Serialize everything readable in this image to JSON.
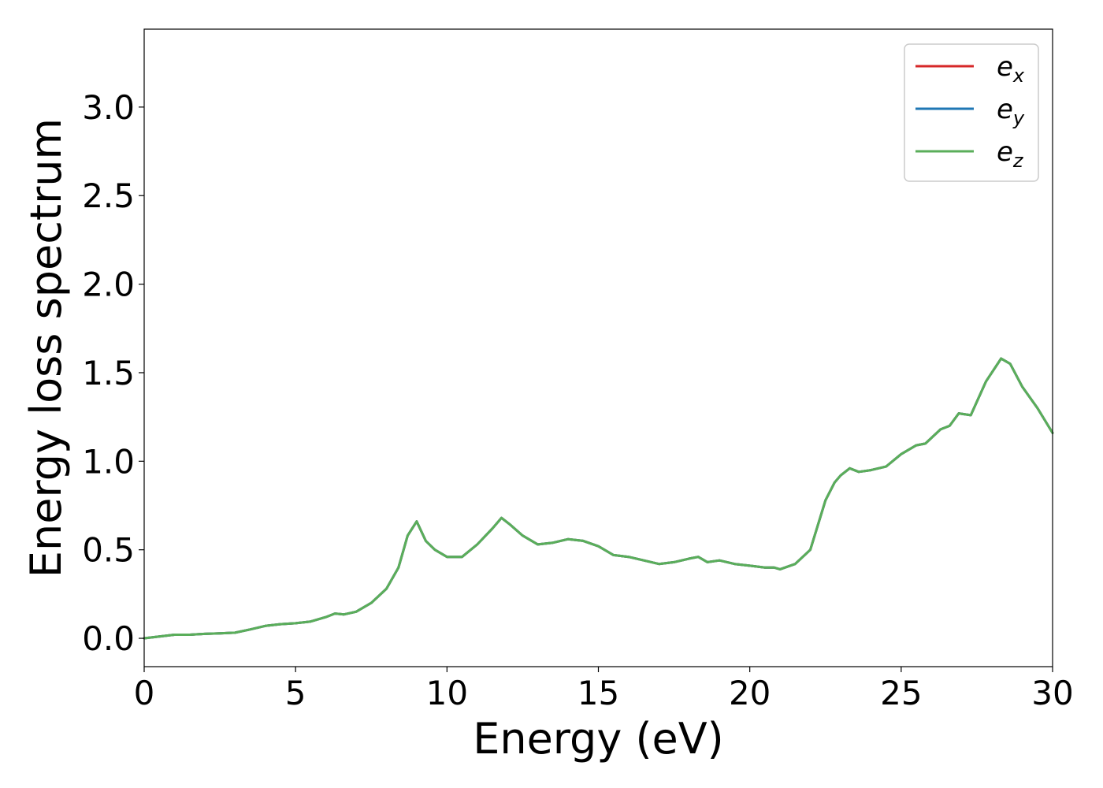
{
  "chart_data": {
    "type": "line",
    "title": "",
    "xlabel": "Energy (eV)",
    "ylabel": "Energy loss spectrum",
    "xlim": [
      0,
      30
    ],
    "ylim": [
      -0.16,
      3.44
    ],
    "xticks": [
      0,
      5,
      10,
      15,
      20,
      25,
      30
    ],
    "yticks": [
      0.0,
      0.5,
      1.0,
      1.5,
      2.0,
      2.5,
      3.0
    ],
    "xtick_labels": [
      "0",
      "5",
      "10",
      "15",
      "20",
      "25",
      "30"
    ],
    "ytick_labels": [
      "0.0",
      "0.5",
      "1.0",
      "1.5",
      "2.0",
      "2.5",
      "3.0"
    ],
    "grid": false,
    "legend_position": "top-right",
    "series": [
      {
        "name": "e",
        "subscript": "x",
        "color": "#d62728",
        "x": [
          0,
          0.5,
          1,
          1.5,
          2,
          2.5,
          3,
          3.5,
          4,
          4.5,
          5,
          5.5,
          6,
          6.3,
          6.6,
          7,
          7.5,
          8,
          8.4,
          8.7,
          9,
          9.3,
          9.6,
          10,
          10.5,
          11,
          11.5,
          11.8,
          12.1,
          12.5,
          13,
          13.5,
          14,
          14.5,
          15,
          15.5,
          16,
          16.5,
          17,
          17.5,
          18,
          18.3,
          18.6,
          19,
          19.5,
          20,
          20.5,
          20.8,
          21,
          21.5,
          22,
          22.5,
          22.8,
          23,
          23.3,
          23.6,
          24,
          24.5,
          25,
          25.5,
          25.8,
          26.3,
          26.6,
          26.9,
          27.3,
          27.8,
          28.3,
          28.6,
          29,
          29.5,
          30
        ],
        "y": [
          0.0,
          0.01,
          0.02,
          0.02,
          0.025,
          0.028,
          0.032,
          0.05,
          0.07,
          0.08,
          0.085,
          0.095,
          0.12,
          0.14,
          0.135,
          0.15,
          0.2,
          0.28,
          0.4,
          0.58,
          0.66,
          0.55,
          0.5,
          0.46,
          0.46,
          0.53,
          0.62,
          0.68,
          0.64,
          0.58,
          0.53,
          0.54,
          0.56,
          0.55,
          0.52,
          0.47,
          0.46,
          0.44,
          0.42,
          0.43,
          0.45,
          0.46,
          0.43,
          0.44,
          0.42,
          0.41,
          0.4,
          0.4,
          0.39,
          0.42,
          0.5,
          0.78,
          0.88,
          0.92,
          0.96,
          0.94,
          0.95,
          0.97,
          1.04,
          1.09,
          1.1,
          1.18,
          1.2,
          1.27,
          1.26,
          1.45,
          1.58,
          1.55,
          1.42,
          1.3,
          1.16
        ]
      },
      {
        "name": "e",
        "subscript": "y",
        "color": "#1f77b4",
        "x": [
          0,
          0.5,
          1,
          1.5,
          2,
          2.5,
          3,
          3.5,
          4,
          4.5,
          5,
          5.5,
          6,
          6.3,
          6.6,
          7,
          7.5,
          8,
          8.4,
          8.7,
          9,
          9.3,
          9.6,
          10,
          10.5,
          11,
          11.5,
          11.8,
          12.1,
          12.5,
          13,
          13.5,
          14,
          14.5,
          15,
          15.5,
          16,
          16.5,
          17,
          17.5,
          18,
          18.3,
          18.6,
          19,
          19.5,
          20,
          20.5,
          20.8,
          21,
          21.5,
          22,
          22.5,
          22.8,
          23,
          23.3,
          23.6,
          24,
          24.5,
          25,
          25.5,
          25.8,
          26.3,
          26.6,
          26.9,
          27.3,
          27.8,
          28.3,
          28.6,
          29,
          29.5,
          30
        ],
        "y": [
          0.0,
          0.01,
          0.02,
          0.02,
          0.025,
          0.028,
          0.032,
          0.05,
          0.07,
          0.08,
          0.085,
          0.095,
          0.12,
          0.14,
          0.135,
          0.15,
          0.2,
          0.28,
          0.4,
          0.58,
          0.66,
          0.55,
          0.5,
          0.46,
          0.46,
          0.53,
          0.62,
          0.68,
          0.64,
          0.58,
          0.53,
          0.54,
          0.56,
          0.55,
          0.52,
          0.47,
          0.46,
          0.44,
          0.42,
          0.43,
          0.45,
          0.46,
          0.43,
          0.44,
          0.42,
          0.41,
          0.4,
          0.4,
          0.39,
          0.42,
          0.5,
          0.78,
          0.88,
          0.92,
          0.96,
          0.94,
          0.95,
          0.97,
          1.04,
          1.09,
          1.1,
          1.18,
          1.2,
          1.27,
          1.26,
          1.45,
          1.58,
          1.55,
          1.42,
          1.3,
          1.16
        ]
      },
      {
        "name": "e",
        "subscript": "z",
        "color": "#5aae5a",
        "x": [
          0,
          0.5,
          1,
          1.5,
          2,
          2.5,
          3,
          3.5,
          4,
          4.5,
          5,
          5.5,
          6,
          6.3,
          6.6,
          7,
          7.5,
          8,
          8.4,
          8.7,
          9,
          9.3,
          9.6,
          10,
          10.5,
          11,
          11.5,
          11.8,
          12.1,
          12.5,
          13,
          13.5,
          14,
          14.5,
          15,
          15.5,
          16,
          16.5,
          17,
          17.5,
          18,
          18.3,
          18.6,
          19,
          19.5,
          20,
          20.5,
          20.8,
          21,
          21.5,
          22,
          22.5,
          22.8,
          23,
          23.3,
          23.6,
          24,
          24.5,
          25,
          25.5,
          25.8,
          26.3,
          26.6,
          26.9,
          27.3,
          27.8,
          28.3,
          28.6,
          29,
          29.5,
          30
        ],
        "y": [
          0.0,
          0.01,
          0.02,
          0.02,
          0.025,
          0.028,
          0.032,
          0.05,
          0.07,
          0.08,
          0.085,
          0.095,
          0.12,
          0.14,
          0.135,
          0.15,
          0.2,
          0.28,
          0.4,
          0.58,
          0.66,
          0.55,
          0.5,
          0.46,
          0.46,
          0.53,
          0.62,
          0.68,
          0.64,
          0.58,
          0.53,
          0.54,
          0.56,
          0.55,
          0.52,
          0.47,
          0.46,
          0.44,
          0.42,
          0.43,
          0.45,
          0.46,
          0.43,
          0.44,
          0.42,
          0.41,
          0.4,
          0.4,
          0.39,
          0.42,
          0.5,
          0.78,
          0.88,
          0.92,
          0.96,
          0.94,
          0.95,
          0.97,
          1.04,
          1.09,
          1.1,
          1.18,
          1.2,
          1.27,
          1.26,
          1.45,
          1.58,
          1.55,
          1.42,
          1.3,
          1.16
        ]
      }
    ]
  }
}
